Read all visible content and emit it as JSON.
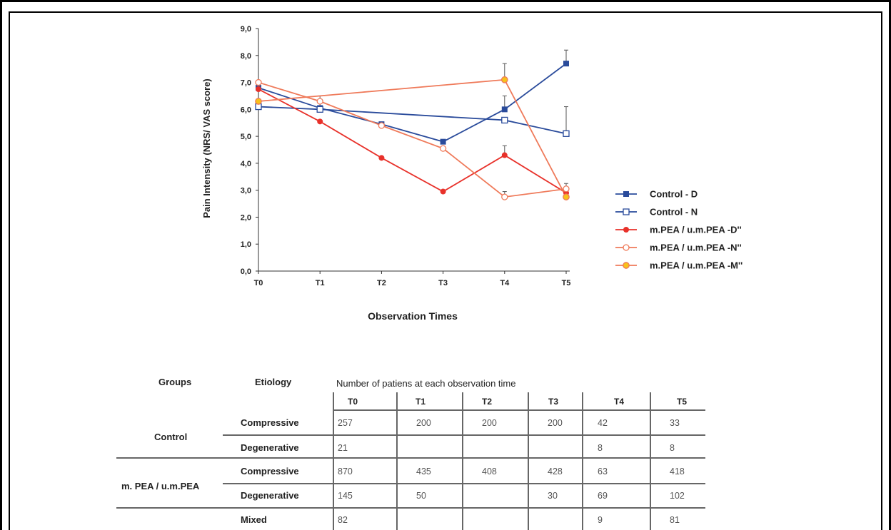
{
  "chart_data": {
    "type": "line",
    "ylabel": "Pain Intensity (NRS/ VAS score)",
    "xlabel": "Observation Times",
    "categories": [
      "T0",
      "T1",
      "T2",
      "T3",
      "T4",
      "T5"
    ],
    "ylim": [
      0,
      9
    ],
    "yticks": [
      "0,0",
      "1,0",
      "2,0",
      "3,0",
      "4,0",
      "5,0",
      "6,0",
      "7,0",
      "8,0",
      "9,0"
    ],
    "legend_position": "right",
    "series": [
      {
        "name": "Control - D",
        "color": "#2a4b9b",
        "marker": "filled-square",
        "x": [
          "T0",
          "T1",
          "T2",
          "T3",
          "T4",
          "T5"
        ],
        "values": [
          6.8,
          6.05,
          5.45,
          4.8,
          6.0,
          7.7
        ],
        "errors": [
          0,
          0.45,
          0,
          0,
          0.5,
          0.5
        ]
      },
      {
        "name": "Control - N",
        "color": "#2a4b9b",
        "marker": "open-square",
        "x": [
          "T0",
          "T1",
          "T4",
          "T5"
        ],
        "values": [
          6.1,
          6.0,
          5.6,
          5.1
        ],
        "errors": [
          0,
          0,
          0,
          1.0
        ]
      },
      {
        "name": "m.PEA / u.m.PEA -D''",
        "color": "#e8312a",
        "marker": "filled-circle",
        "x": [
          "T0",
          "T1",
          "T2",
          "T3",
          "T4",
          "T5"
        ],
        "values": [
          6.75,
          5.55,
          4.2,
          2.95,
          4.3,
          2.9
        ],
        "errors": [
          0,
          0,
          0,
          0,
          0.35,
          0
        ]
      },
      {
        "name": "m.PEA / u.m.PEA -N''",
        "color": "#ef7a5a",
        "marker": "open-circle",
        "x": [
          "T0",
          "T1",
          "T2",
          "T3",
          "T4",
          "T5"
        ],
        "values": [
          7.0,
          6.3,
          5.4,
          4.55,
          2.75,
          3.05
        ],
        "errors": [
          0,
          0,
          0,
          0,
          0.2,
          0.2
        ]
      },
      {
        "name": "m.PEA / u.m.PEA -M''",
        "color": "#ef7a5a",
        "marker": "yellow-circle",
        "x": [
          "T0",
          "T4",
          "T5"
        ],
        "values": [
          6.3,
          7.1,
          2.75
        ],
        "errors": [
          0,
          0.6,
          0
        ]
      }
    ]
  },
  "table": {
    "header_groups": "Groups",
    "header_etiology": "Etiology",
    "header_caption": "Number of patiens at each observation time",
    "columns": [
      "T0",
      "T1",
      "T2",
      "T3",
      "T4",
      "T5"
    ],
    "groups": [
      {
        "name": "Control",
        "rows": [
          {
            "etiology": "Compressive",
            "cells": [
              "257",
              "200",
              "200",
              "200",
              "42",
              "33"
            ]
          },
          {
            "etiology": "Degenerative",
            "cells": [
              "21",
              "",
              "",
              "",
              "8",
              "8"
            ]
          }
        ]
      },
      {
        "name": "m. PEA / u.m.PEA",
        "rows": [
          {
            "etiology": "Compressive",
            "cells": [
              "870",
              "435",
              "408",
              "428",
              "63",
              "418"
            ]
          },
          {
            "etiology": "Degenerative",
            "cells": [
              "145",
              "50",
              "",
              "30",
              "69",
              "102"
            ]
          },
          {
            "etiology": "Mixed",
            "cells": [
              "82",
              "",
              "",
              "",
              "9",
              "81"
            ]
          }
        ]
      }
    ]
  }
}
